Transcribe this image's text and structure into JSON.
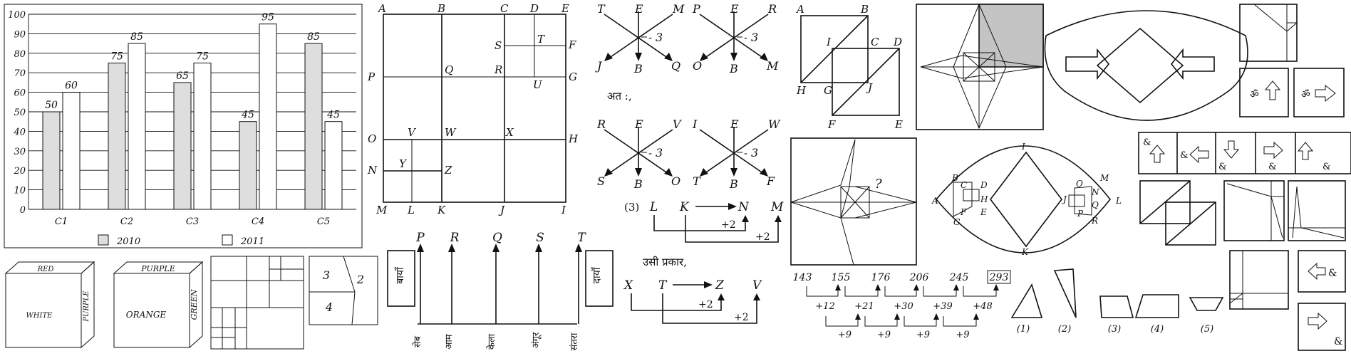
{
  "chart_data": {
    "type": "bar",
    "categories": [
      "C1",
      "C2",
      "C3",
      "C4",
      "C5"
    ],
    "series": [
      {
        "name": "2010",
        "values": [
          50,
          75,
          65,
          45,
          85
        ],
        "color": "#dedede"
      },
      {
        "name": "2011",
        "values": [
          60,
          85,
          75,
          95,
          45
        ],
        "color": "#ffffff"
      }
    ],
    "ylim": [
      0,
      100
    ],
    "yticks": [
      0,
      10,
      20,
      30,
      40,
      50,
      60,
      70,
      80,
      90,
      100
    ],
    "grid": true,
    "legend": "bottom"
  },
  "grid_puzzle": {
    "top": [
      "A",
      "B",
      "C",
      "D",
      "E"
    ],
    "bottom": [
      "M",
      "L",
      "K",
      "J",
      "I"
    ],
    "left": [
      "P",
      "O",
      "N"
    ],
    "right": [
      "F",
      "G",
      "H"
    ],
    "inner": [
      "S",
      "T",
      "Q",
      "R",
      "U",
      "V",
      "W",
      "X",
      "Y",
      "Z"
    ]
  },
  "arrow_puzzles": {
    "diagrams": [
      {
        "tl": "T",
        "top": "E",
        "tr": "M",
        "bl": "J",
        "bottom": "B",
        "br": "Q",
        "label": "3"
      },
      {
        "tl": "P",
        "top": "E",
        "tr": "R",
        "bl": "O",
        "bottom": "B",
        "br": "M",
        "label": "3"
      },
      {
        "tl": "R",
        "top": "E",
        "tr": "V",
        "bl": "S",
        "bottom": "B",
        "br": "O",
        "label": "3"
      },
      {
        "tl": "I",
        "top": "E",
        "tr": "W",
        "bl": "T",
        "bottom": "B",
        "br": "F",
        "label": "3"
      }
    ],
    "ata": "अत :,",
    "option_num": "(3)",
    "row1": [
      "L",
      "K",
      "N",
      "M"
    ],
    "plus1": "+2",
    "plus2": "+2",
    "usi": "उसी प्रकार,",
    "row2": [
      "X",
      "T",
      "Z",
      "V"
    ],
    "plus3": "+2",
    "plus4": "+2"
  },
  "fruit_diagram": {
    "top": [
      "P",
      "R",
      "Q",
      "S",
      "T"
    ],
    "left_box": "बायाँ",
    "right_box": "दायाँ",
    "fruits": [
      "सेब",
      "आम",
      "केला",
      "अंगूर",
      "संतरा"
    ]
  },
  "cubes": [
    {
      "top": "RED",
      "side": "PURPLE",
      "front": "WHITE"
    },
    {
      "top": "PURPLE",
      "side": "GREEN",
      "front": "ORANGE"
    }
  ],
  "split_square": {
    "a": "3",
    "b": "2",
    "c": "4"
  },
  "number_series": {
    "terms": [
      "143",
      "155",
      "176",
      "206",
      "245",
      "293"
    ],
    "diffs1": [
      "+12",
      "+21",
      "+30",
      "+39",
      "+48"
    ],
    "diffs2": [
      "+9",
      "+9",
      "+9",
      "+9"
    ]
  },
  "parallelograms": {
    "labels": [
      "A",
      "B",
      "I",
      "C",
      "D",
      "H",
      "G",
      "J",
      "F",
      "E"
    ]
  },
  "diamond_labels": [
    "B",
    "C",
    "D",
    "A",
    "H",
    "F",
    "E",
    "G",
    "I",
    "J",
    "K",
    "O",
    "M",
    "N",
    "Q",
    "P",
    "R",
    "L"
  ],
  "question_mark": "?",
  "shape_options": [
    "(1)",
    "(2)",
    "(3)",
    "(4)",
    "(5)"
  ],
  "symbol_boxes": {
    "om": "ॐ",
    "amp": "&"
  }
}
